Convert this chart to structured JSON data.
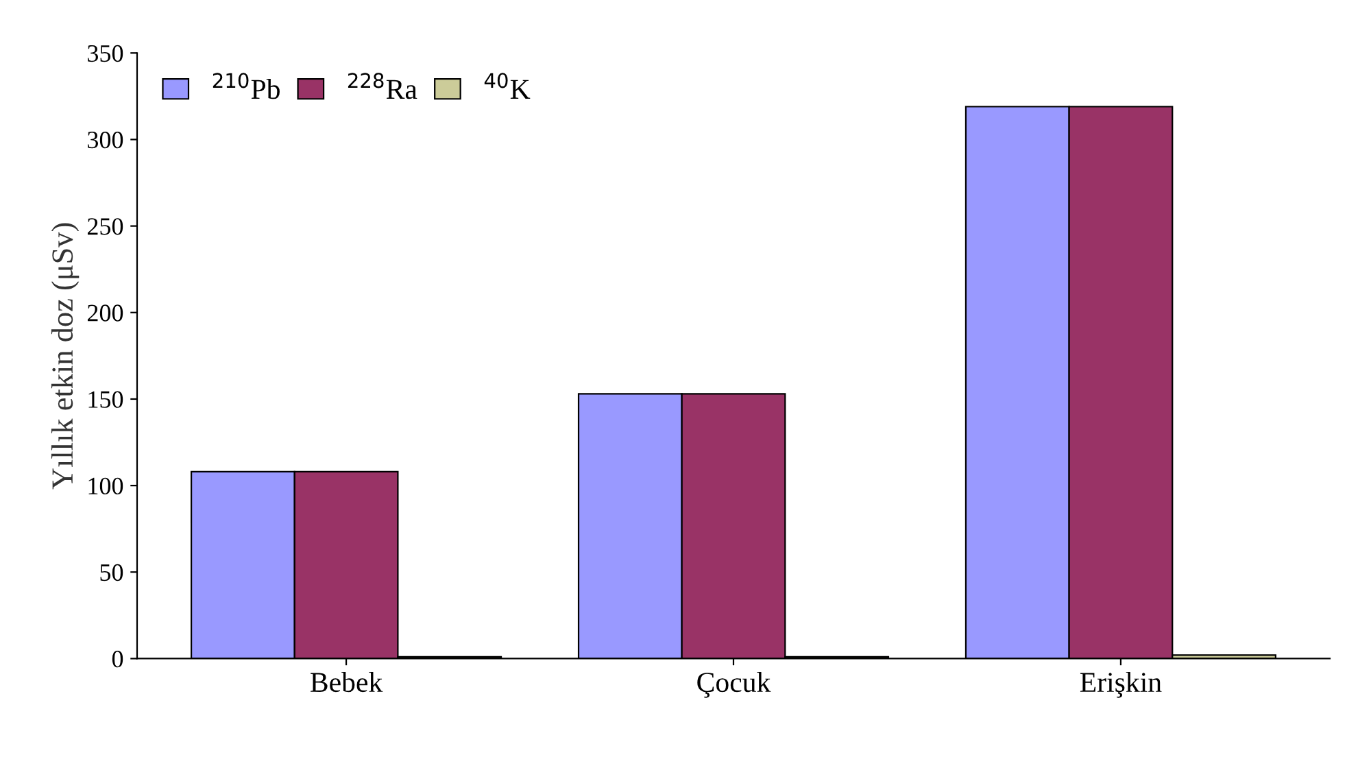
{
  "chart_data": {
    "type": "bar",
    "ylabel": "Yıllık etkin doz (μSv)",
    "categories": [
      "Bebek",
      "Çocuk",
      "Erişkin"
    ],
    "series": [
      {
        "name": "$^{210}$Pb",
        "color": "#9999ff",
        "values": [
          108,
          153,
          319
        ]
      },
      {
        "name": "$^{228}$Ra",
        "color": "#993366",
        "values": [
          108,
          153,
          319
        ]
      },
      {
        "name": "$^{40}$K",
        "color": "#cccc99",
        "values": [
          1,
          1,
          2
        ]
      }
    ],
    "ylim": [
      0,
      350
    ],
    "yticks": [
      0,
      50,
      100,
      150,
      200,
      250,
      300,
      350
    ],
    "grid": false,
    "legend": "top left"
  }
}
